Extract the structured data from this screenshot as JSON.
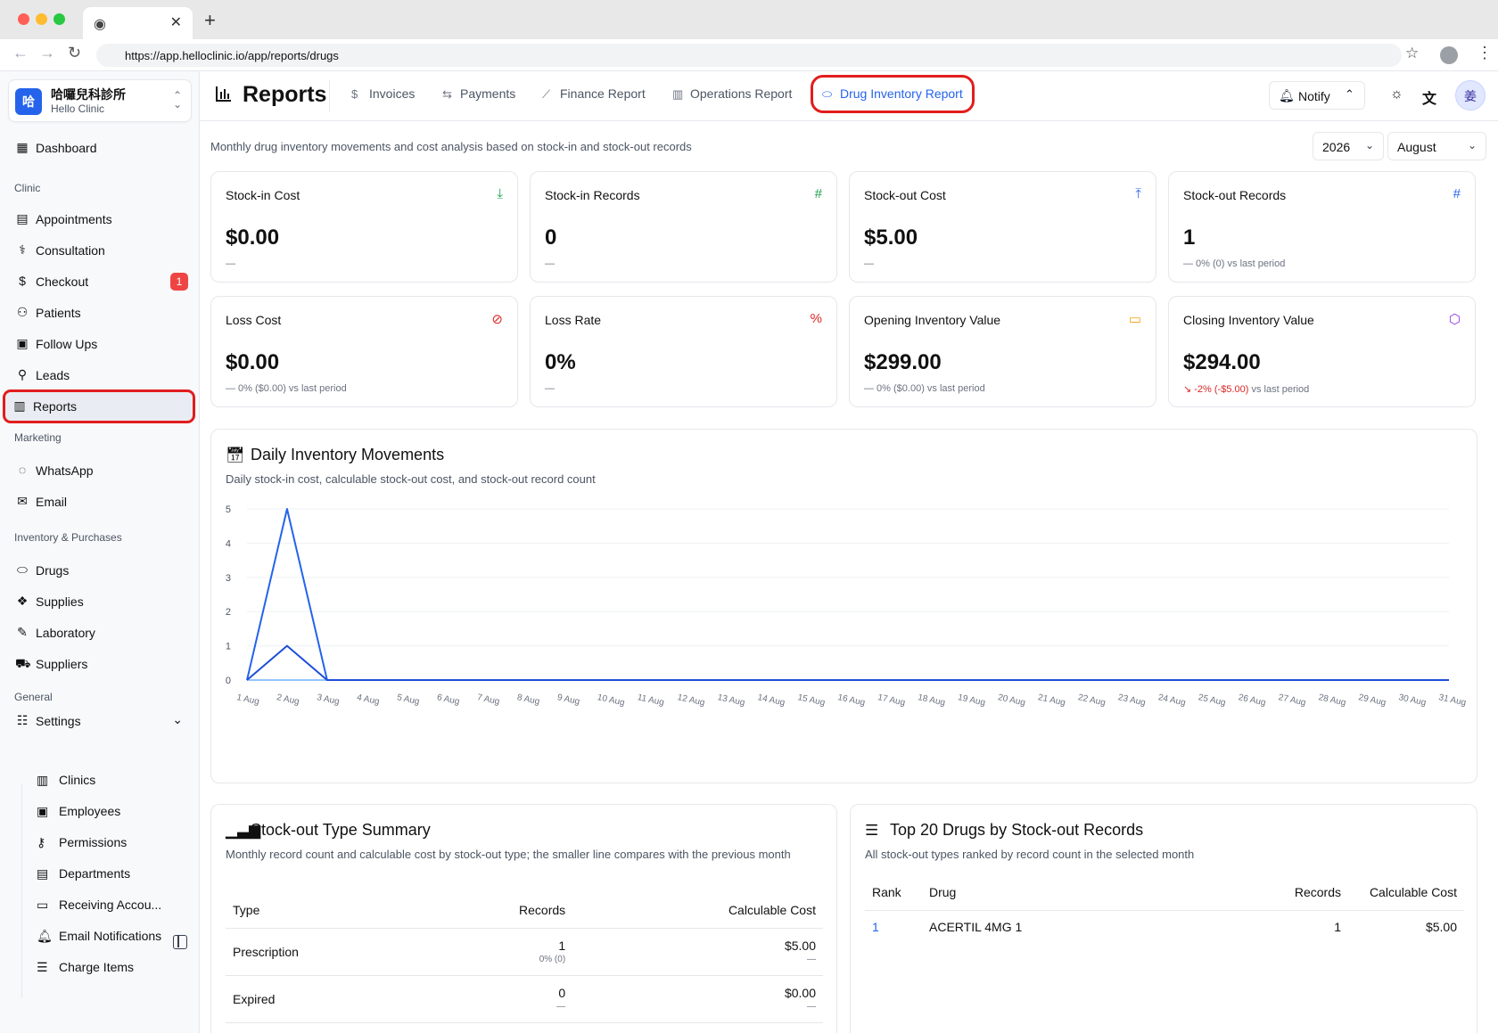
{
  "browser": {
    "url": "https://app.helloclinic.io/app/reports/drugs"
  },
  "sidebar": {
    "clinic_name": "哈囉兒科診所",
    "clinic_sub": "Hello Clinic",
    "clinic_logo": "哈",
    "dashboard": "Dashboard",
    "sections": {
      "clinic": "Clinic",
      "marketing": "Marketing",
      "inventory": "Inventory & Purchases",
      "general": "General"
    },
    "clinic_items": [
      {
        "label": "Appointments",
        "icon": "calendar-icon"
      },
      {
        "label": "Consultation",
        "icon": "stethoscope-icon"
      },
      {
        "label": "Checkout",
        "icon": "dollar-icon",
        "badge": "1"
      },
      {
        "label": "Patients",
        "icon": "users-icon"
      },
      {
        "label": "Follow Ups",
        "icon": "clipboard-icon"
      },
      {
        "label": "Leads",
        "icon": "user-search-icon"
      },
      {
        "label": "Reports",
        "icon": "chart-icon"
      }
    ],
    "marketing_items": [
      {
        "label": "WhatsApp",
        "icon": "whatsapp-icon"
      },
      {
        "label": "Email",
        "icon": "mail-icon"
      }
    ],
    "inventory_items": [
      {
        "label": "Drugs",
        "icon": "pill-icon"
      },
      {
        "label": "Supplies",
        "icon": "boxes-icon"
      },
      {
        "label": "Laboratory",
        "icon": "pipette-icon"
      },
      {
        "label": "Suppliers",
        "icon": "truck-icon"
      }
    ],
    "settings": "Settings",
    "settings_items": [
      {
        "label": "Clinics",
        "icon": "hospital-icon"
      },
      {
        "label": "Employees",
        "icon": "id-badge-icon"
      },
      {
        "label": "Permissions",
        "icon": "key-icon"
      },
      {
        "label": "Departments",
        "icon": "layout-icon"
      },
      {
        "label": "Receiving Accou...",
        "icon": "card-icon"
      },
      {
        "label": "Email Notifications",
        "icon": "bell-icon"
      },
      {
        "label": "Charge Items",
        "icon": "list-check-icon"
      }
    ]
  },
  "header": {
    "title": "Reports",
    "tabs": [
      {
        "label": "Invoices",
        "icon": "receipt-icon"
      },
      {
        "label": "Payments",
        "icon": "arrows-icon"
      },
      {
        "label": "Finance Report",
        "icon": "trend-icon"
      },
      {
        "label": "Operations Report",
        "icon": "bar-chart-icon"
      },
      {
        "label": "Drug Inventory Report",
        "icon": "pill-icon"
      }
    ],
    "notify_label": "Notify",
    "avatar": "姜"
  },
  "main": {
    "subtitle": "Monthly drug inventory movements and cost analysis based on stock-in and stock-out records",
    "year": "2026",
    "month": "August",
    "cards": [
      {
        "title": "Stock-in Cost",
        "value": "$0.00",
        "sub": "—",
        "icon": "arrow-down-to-line-icon",
        "color": "#16a34a"
      },
      {
        "title": "Stock-in Records",
        "value": "0",
        "sub": "—",
        "icon": "hash-icon",
        "color": "#16a34a"
      },
      {
        "title": "Stock-out Cost",
        "value": "$5.00",
        "sub": "—",
        "icon": "arrow-up-to-line-icon",
        "color": "#2563eb"
      },
      {
        "title": "Stock-out Records",
        "value": "1",
        "sub": "— 0% (0)  vs last period",
        "icon": "hash-icon",
        "color": "#2563eb"
      },
      {
        "title": "Loss Cost",
        "value": "$0.00",
        "sub": "— 0% ($0.00)  vs last period",
        "icon": "ban-icon",
        "color": "#dc2626"
      },
      {
        "title": "Loss Rate",
        "value": "0%",
        "sub": "—",
        "icon": "percent-icon",
        "color": "#dc2626"
      },
      {
        "title": "Opening Inventory Value",
        "value": "$299.00",
        "sub": "— 0% ($0.00)  vs last period",
        "icon": "archive-icon",
        "color": "#f59e0b"
      },
      {
        "title": "Closing Inventory Value",
        "value": "$294.00",
        "sub_neg": "↘ -2% (-$5.00)",
        "sub_rest": "  vs last period",
        "icon": "package-icon",
        "color": "#9333ea"
      }
    ],
    "daily": {
      "title": "Daily Inventory Movements",
      "desc": "Daily stock-in cost, calculable stock-out cost, and stock-out record count"
    },
    "summary": {
      "title": "Stock-out Type Summary",
      "desc": "Monthly record count and calculable cost by stock-out type; the smaller line compares with the previous month",
      "headers": [
        "Type",
        "Records",
        "Calculable Cost"
      ],
      "rows": [
        {
          "type": "Prescription",
          "records": "1",
          "records_sub": "0% (0)",
          "cost": "$5.00",
          "cost_sub": "—"
        },
        {
          "type": "Expired",
          "records": "0",
          "records_sub": "—",
          "cost": "$0.00",
          "cost_sub": "—"
        }
      ]
    },
    "top": {
      "title": "Top 20 Drugs by Stock-out Records",
      "desc": "All stock-out types ranked by record count in the selected month",
      "headers": [
        "Rank",
        "Drug",
        "Records",
        "Calculable Cost"
      ],
      "rows": [
        {
          "rank": "1",
          "drug": "ACERTIL 4MG 1",
          "records": "1",
          "cost": "$5.00"
        }
      ]
    }
  },
  "chart_data": {
    "type": "line",
    "x": [
      "1 Aug",
      "2 Aug",
      "3 Aug",
      "4 Aug",
      "5 Aug",
      "6 Aug",
      "7 Aug",
      "8 Aug",
      "9 Aug",
      "10 Aug",
      "11 Aug",
      "12 Aug",
      "13 Aug",
      "14 Aug",
      "15 Aug",
      "16 Aug",
      "17 Aug",
      "18 Aug",
      "19 Aug",
      "20 Aug",
      "21 Aug",
      "22 Aug",
      "23 Aug",
      "24 Aug",
      "25 Aug",
      "26 Aug",
      "27 Aug",
      "28 Aug",
      "29 Aug",
      "30 Aug",
      "31 Aug"
    ],
    "series": [
      {
        "values": [
          0,
          0,
          0,
          0,
          0,
          0,
          0,
          0,
          0,
          0,
          0,
          0,
          0,
          0,
          0,
          0,
          0,
          0,
          0,
          0,
          0,
          0,
          0,
          0,
          0,
          0,
          0,
          0,
          0,
          0,
          0
        ],
        "color": "#93c5fd"
      },
      {
        "values": [
          0,
          5,
          0,
          0,
          0,
          0,
          0,
          0,
          0,
          0,
          0,
          0,
          0,
          0,
          0,
          0,
          0,
          0,
          0,
          0,
          0,
          0,
          0,
          0,
          0,
          0,
          0,
          0,
          0,
          0,
          0
        ],
        "color": "#2563eb"
      },
      {
        "values": [
          0,
          1,
          0,
          0,
          0,
          0,
          0,
          0,
          0,
          0,
          0,
          0,
          0,
          0,
          0,
          0,
          0,
          0,
          0,
          0,
          0,
          0,
          0,
          0,
          0,
          0,
          0,
          0,
          0,
          0,
          0
        ],
        "color": "#1d4ed8"
      }
    ],
    "yticks": [
      0,
      1,
      2,
      3,
      4,
      5
    ],
    "ylim": [
      0,
      5
    ],
    "grid": true
  }
}
